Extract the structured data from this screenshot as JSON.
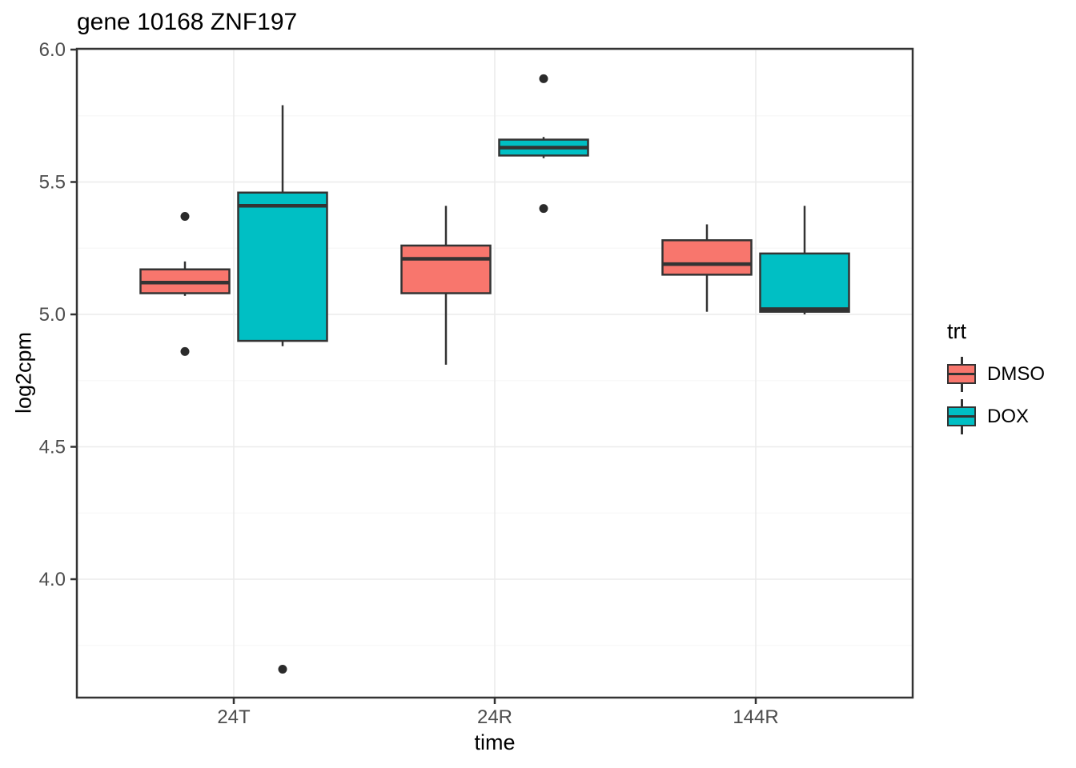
{
  "chart_data": {
    "type": "boxplot",
    "title": "gene 10168 ZNF197",
    "xlabel": "time",
    "ylabel": "log2cpm",
    "categories": [
      "24T",
      "24R",
      "144R"
    ],
    "y_ticks": [
      6.0,
      5.5,
      5.0,
      4.5,
      4.0
    ],
    "y_tick_labels": [
      "6.0",
      "5.5",
      "5.0",
      "4.5",
      "4.0"
    ],
    "y_minor_gridlines": [
      5.75,
      5.25,
      4.75,
      4.25,
      3.75
    ],
    "ylim": [
      3.55,
      6.0
    ],
    "grid": true,
    "legend": {
      "title": "trt",
      "position": "right",
      "entries": [
        {
          "label": "DMSO",
          "color": "#F8766D"
        },
        {
          "label": "DOX",
          "color": "#00BFC4"
        }
      ]
    },
    "series": [
      {
        "name": "DMSO",
        "color": "#F8766D",
        "boxes": [
          {
            "category": "24T",
            "whisker_low": 5.07,
            "q1": 5.08,
            "median": 5.12,
            "q3": 5.17,
            "whisker_high": 5.2,
            "outliers": [
              5.37,
              4.86
            ]
          },
          {
            "category": "24R",
            "whisker_low": 4.81,
            "q1": 5.08,
            "median": 5.21,
            "q3": 5.26,
            "whisker_high": 5.41,
            "outliers": []
          },
          {
            "category": "144R",
            "whisker_low": 5.01,
            "q1": 5.15,
            "median": 5.19,
            "q3": 5.28,
            "whisker_high": 5.34,
            "outliers": []
          }
        ]
      },
      {
        "name": "DOX",
        "color": "#00BFC4",
        "boxes": [
          {
            "category": "24T",
            "whisker_low": 4.88,
            "q1": 4.9,
            "median": 5.41,
            "q3": 5.46,
            "whisker_high": 5.79,
            "outliers": [
              3.66
            ]
          },
          {
            "category": "24R",
            "whisker_low": 5.59,
            "q1": 5.6,
            "median": 5.63,
            "q3": 5.66,
            "whisker_high": 5.67,
            "outliers": [
              5.89,
              5.4
            ]
          },
          {
            "category": "144R",
            "whisker_low": 5.0,
            "q1": 5.01,
            "median": 5.02,
            "q3": 5.23,
            "whisker_high": 5.41,
            "outliers": []
          }
        ]
      }
    ],
    "colors": {
      "box_outline": "#333333",
      "outlier_point": "#2b2b2b",
      "grid_major": "#EBEBEB",
      "grid_minor": "#F5F5F5",
      "axis_text": "#4D4D4D",
      "panel_border": "#333333",
      "background": "#FFFFFF"
    }
  }
}
